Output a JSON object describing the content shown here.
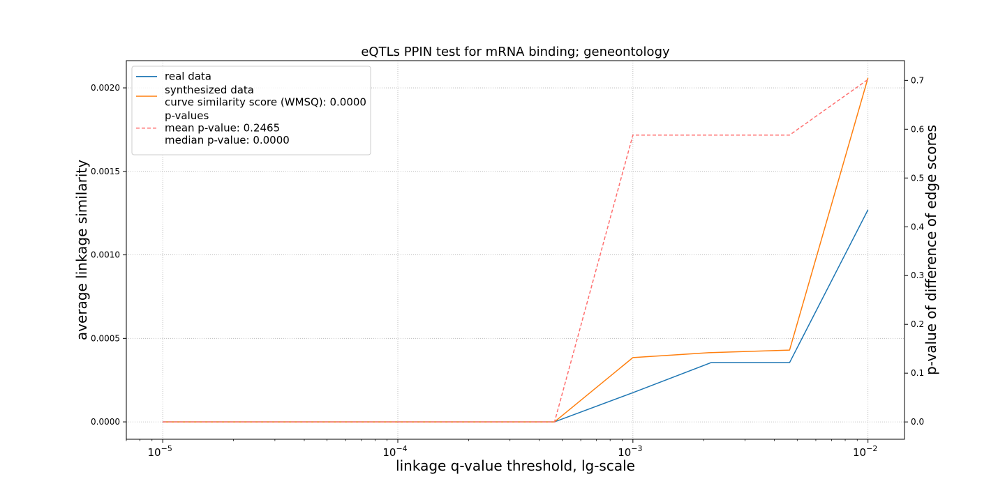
{
  "chart_data": {
    "type": "line",
    "title": "eQTLs PPIN test for mRNA binding; geneontology",
    "xlabel": "linkage q-value threshold, lg-scale",
    "ylabel": "average linkage similarity",
    "y2label": "p-value of difference of edge scores",
    "xscale": "log",
    "xlim": [
      7e-06,
      0.0143
    ],
    "ylim": [
      -0.000104,
      0.002163
    ],
    "y2lim": [
      -0.0355,
      0.7405
    ],
    "xticks": [
      {
        "value": 1e-05,
        "base": "10",
        "exp": "−5"
      },
      {
        "value": 0.0001,
        "base": "10",
        "exp": "−4"
      },
      {
        "value": 0.001,
        "base": "10",
        "exp": "−3"
      },
      {
        "value": 0.01,
        "base": "10",
        "exp": "−2"
      }
    ],
    "yticks": [
      "0.0000",
      "0.0005",
      "0.0010",
      "0.0015",
      "0.0020"
    ],
    "yticks_values": [
      0,
      0.0005,
      0.001,
      0.0015,
      0.002
    ],
    "y2ticks": [
      "0.0",
      "0.1",
      "0.2",
      "0.3",
      "0.4",
      "0.5",
      "0.6",
      "0.7"
    ],
    "y2ticks_values": [
      0,
      0.1,
      0.2,
      0.3,
      0.4,
      0.5,
      0.6,
      0.7
    ],
    "grid": true,
    "legend_placement": "top-left",
    "series": [
      {
        "name": "real data",
        "axis": "left",
        "color": "#1f77b4",
        "style": "solid",
        "x": [
          1e-05,
          2.15e-05,
          4.64e-05,
          0.0001,
          0.000215,
          0.000464,
          0.001,
          0.00215,
          0.00464,
          0.01
        ],
        "y": [
          0,
          0,
          0,
          0,
          0,
          0,
          0.000175,
          0.000355,
          0.000355,
          0.00127
        ]
      },
      {
        "name": "synthesized data",
        "axis": "left",
        "color": "#ff7f0e",
        "style": "solid",
        "x": [
          1e-05,
          2.15e-05,
          4.64e-05,
          0.0001,
          0.000215,
          0.000464,
          0.001,
          0.00215,
          0.00464,
          0.01
        ],
        "y": [
          0,
          0,
          0,
          0,
          0,
          0,
          0.000385,
          0.000415,
          0.00043,
          0.00206
        ]
      },
      {
        "name": "p-values",
        "axis": "right",
        "color": "#ff7070",
        "style": "dashed",
        "x": [
          1e-05,
          2.15e-05,
          4.64e-05,
          0.0001,
          0.000215,
          0.000464,
          0.001,
          0.00215,
          0.00464,
          0.01
        ],
        "y": [
          0,
          0,
          0,
          0,
          0,
          0,
          0.588,
          0.588,
          0.588,
          0.702
        ]
      }
    ],
    "legend": [
      {
        "lines": [
          "real data"
        ],
        "color": "#1f77b4",
        "style": "solid"
      },
      {
        "lines": [
          "synthesized data",
          "curve similarity score (WMSQ): 0.0000"
        ],
        "color": "#ff7f0e",
        "style": "solid"
      },
      {
        "lines": [
          "p-values",
          "mean p-value: 0.2465",
          "median p-value: 0.0000"
        ],
        "color": "#ff7070",
        "style": "dashed"
      }
    ]
  }
}
